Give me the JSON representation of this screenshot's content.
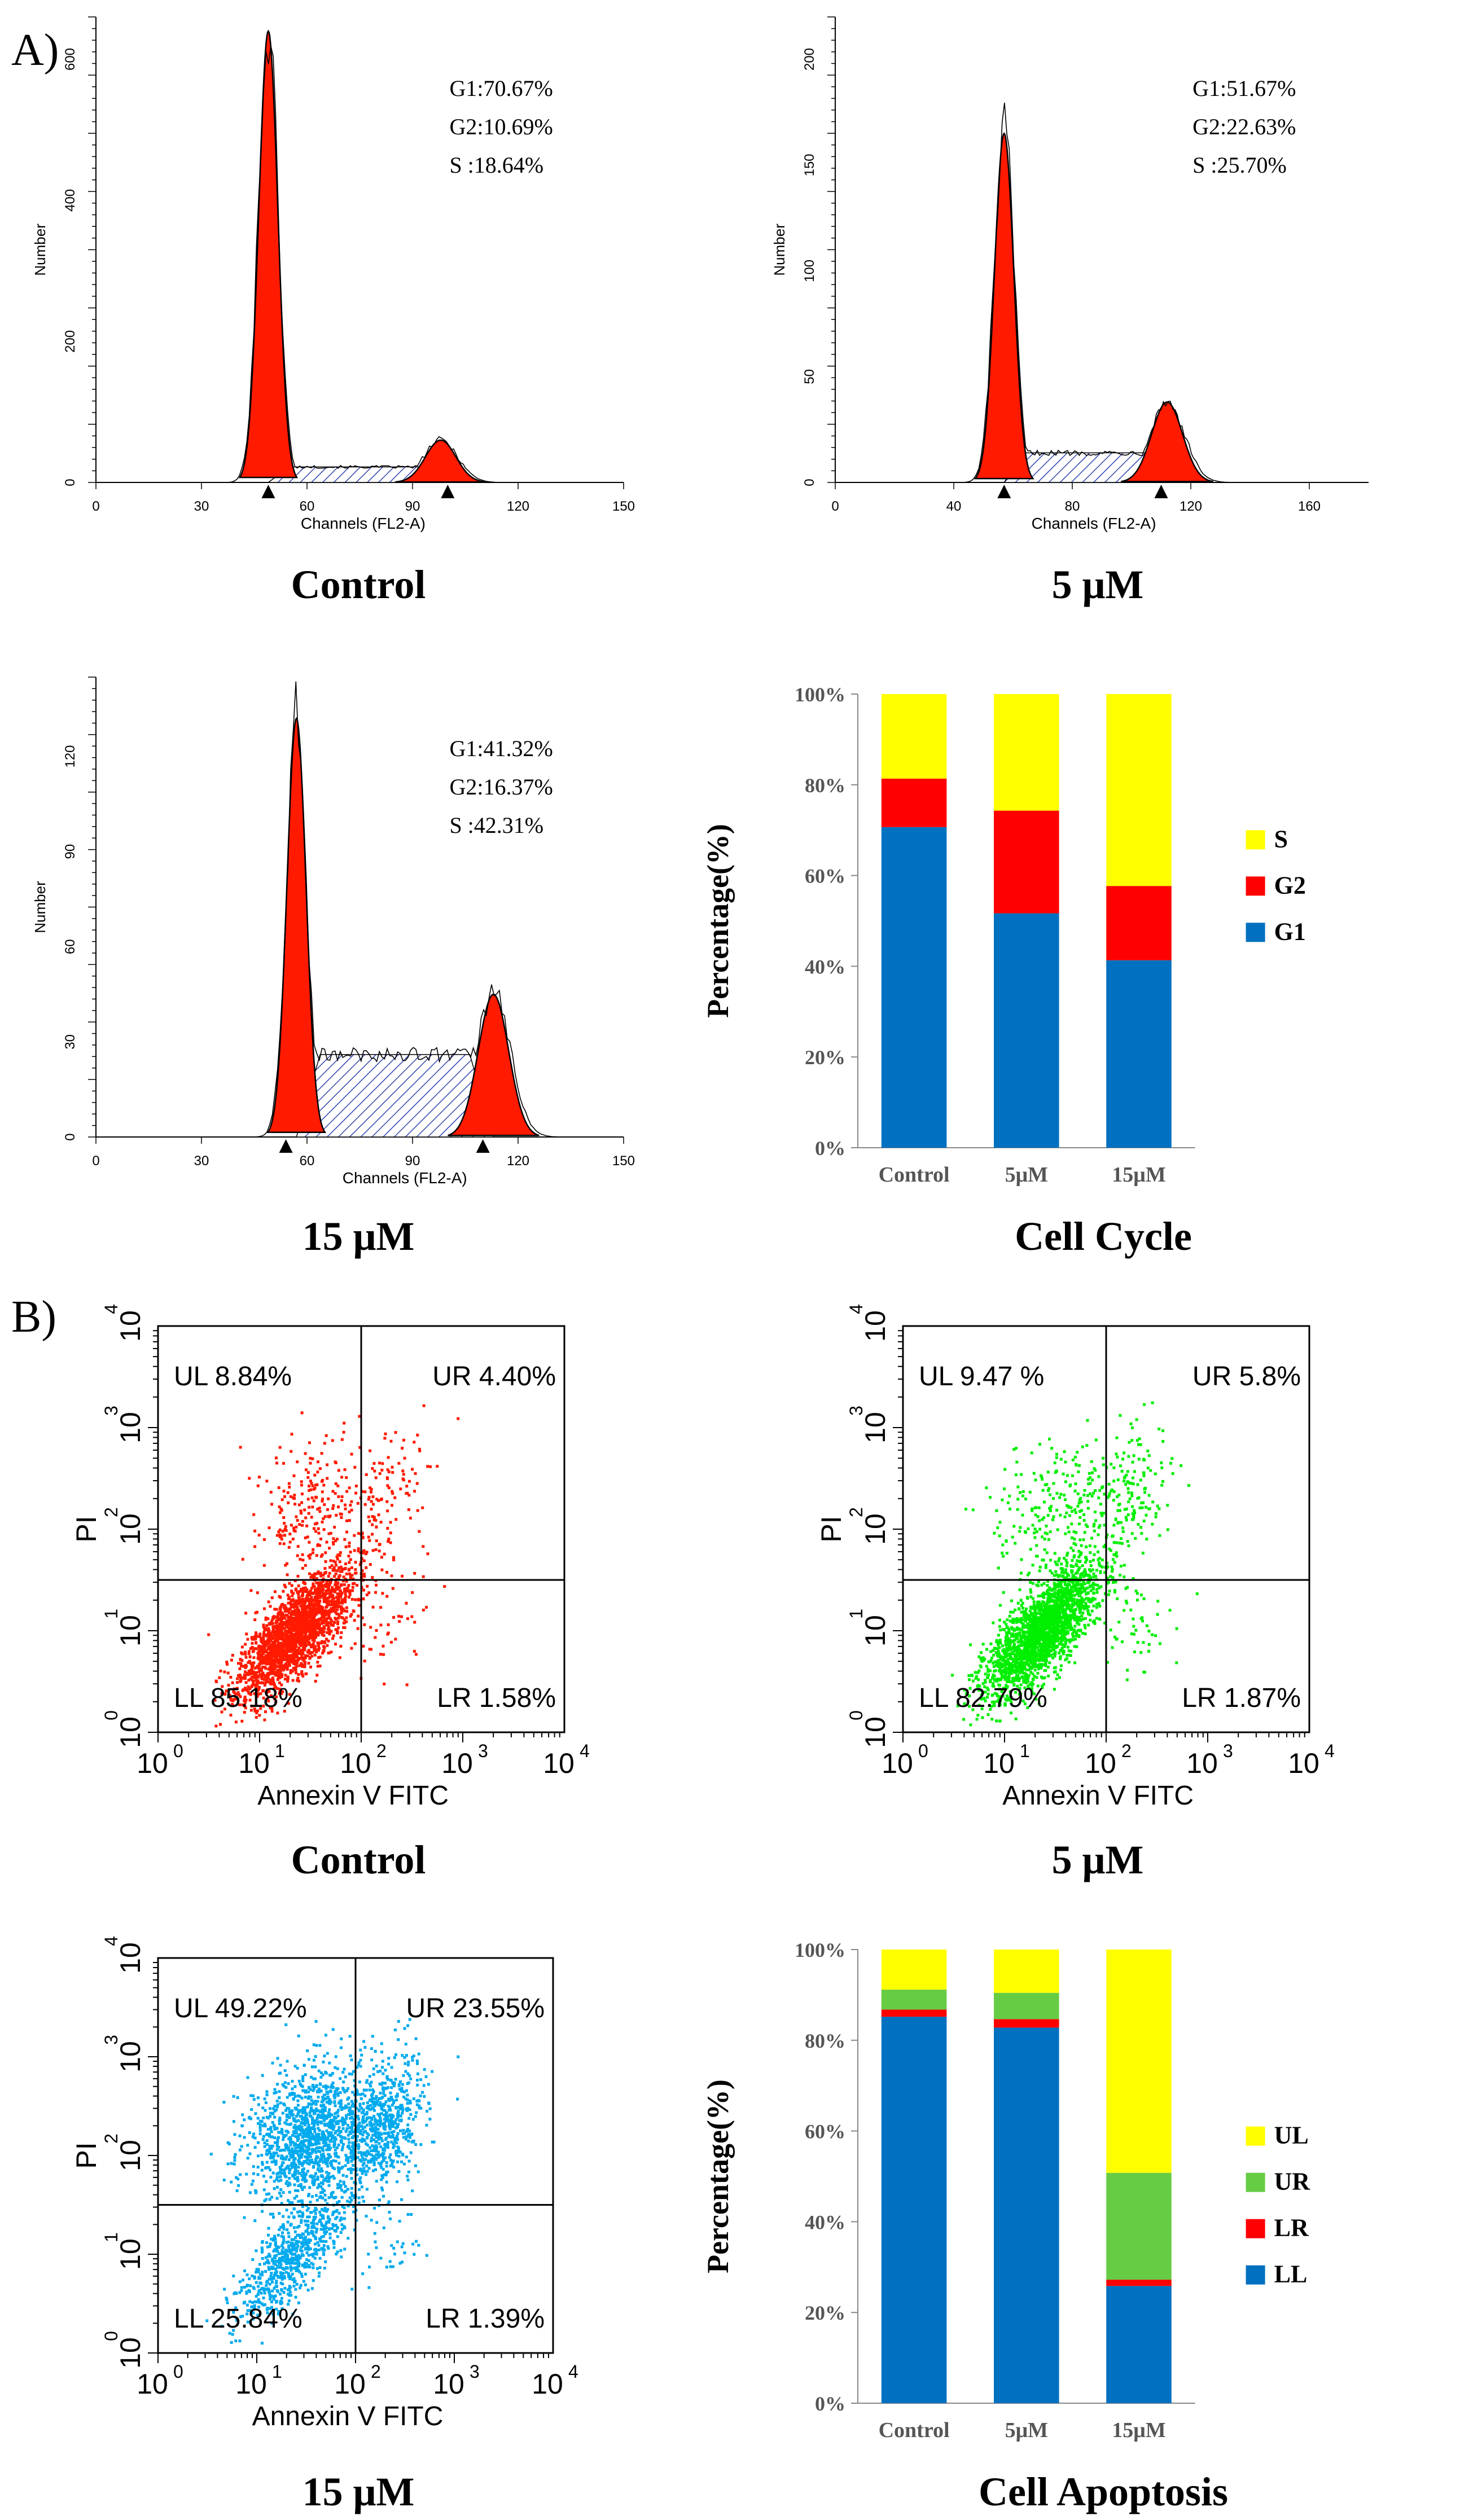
{
  "figure": {
    "section_a_label": "A)",
    "section_b_label": "B)"
  },
  "colors": {
    "g1": "#0070c0",
    "g2": "#ff0000",
    "s": "#ffff00",
    "ll": "#0070c0",
    "lr": "#ff0000",
    "ur": "#66cc44",
    "ul": "#ffff00",
    "hist_fill": "#ff1a00",
    "scatter_control": "#ff1a00",
    "scatter_5uM": "#00ee00",
    "scatter_15uM": "#00aaee"
  },
  "histograms": [
    {
      "caption": "Control",
      "ylabel": "Number",
      "xlabel": "Channels  (FL2-A)",
      "xticks": [
        "0",
        "30",
        "60",
        "90",
        "120",
        "150"
      ],
      "xmax": 150,
      "yticks": [
        "0",
        "200",
        "400",
        "600"
      ],
      "ymax": 660,
      "stats": [
        "G1:70.67%",
        "G2:10.69%",
        "S   :18.64%"
      ],
      "g1_center": 49,
      "g1_height": 640,
      "g2_center": 98,
      "g2_height": 60,
      "s_level": 22,
      "markers": [
        49,
        100
      ]
    },
    {
      "caption": "5 μM",
      "ylabel": "Number",
      "xlabel": "Channels  (FL2-A)",
      "xticks": [
        "0",
        "40",
        "80",
        "120",
        "160"
      ],
      "xmax": 180,
      "yticks": [
        "0",
        "50",
        "100",
        "150",
        "200"
      ],
      "ymax": 220,
      "stats": [
        "G1:51.67%",
        "G2:22.63%",
        "S   :25.70%"
      ],
      "g1_center": 57,
      "g1_height": 165,
      "g2_center": 112,
      "g2_height": 38,
      "s_level": 14,
      "markers": [
        57,
        110
      ]
    },
    {
      "caption": "15 μM",
      "ylabel": "Number",
      "xlabel": "Channels  (FL2-A)",
      "xticks": [
        "0",
        "30",
        "60",
        "90",
        "120",
        "150"
      ],
      "xmax": 150,
      "yticks": [
        "0",
        "30",
        "60",
        "90",
        "120"
      ],
      "ymax": 145,
      "stats": [
        "G1:41.32%",
        "G2:16.37%",
        "S   :42.31%"
      ],
      "g1_center": 57,
      "g1_height": 132,
      "g2_center": 113,
      "g2_height": 45,
      "s_level": 26,
      "markers": [
        54,
        110
      ]
    }
  ],
  "chart_data": [
    {
      "type": "bar",
      "stacked": true,
      "title": "Cell Cycle",
      "ylabel": "Percentage(%)",
      "categories": [
        "Control",
        "5μM",
        "15μM"
      ],
      "yticks": [
        "0%",
        "20%",
        "40%",
        "60%",
        "80%",
        "100%"
      ],
      "ylim": [
        0,
        100
      ],
      "series": [
        {
          "name": "G1",
          "values": [
            70.67,
            51.67,
            41.32
          ]
        },
        {
          "name": "G2",
          "values": [
            10.69,
            22.63,
            16.37
          ]
        },
        {
          "name": "S",
          "values": [
            18.64,
            25.7,
            42.31
          ]
        }
      ],
      "legend": [
        "S",
        "G2",
        "G1"
      ]
    },
    {
      "type": "bar",
      "stacked": true,
      "title": "Cell Apoptosis",
      "ylabel": "Percentage(%)",
      "categories": [
        "Control",
        "5μM",
        "15μM"
      ],
      "yticks": [
        "0%",
        "20%",
        "40%",
        "60%",
        "80%",
        "100%"
      ],
      "ylim": [
        0,
        100
      ],
      "series": [
        {
          "name": "LL",
          "values": [
            85.18,
            82.79,
            25.84
          ]
        },
        {
          "name": "LR",
          "values": [
            1.58,
            1.87,
            1.39
          ]
        },
        {
          "name": "UR",
          "values": [
            4.4,
            5.8,
            23.55
          ]
        },
        {
          "name": "UL",
          "values": [
            8.84,
            9.47,
            49.22
          ]
        }
      ],
      "legend": [
        "UL",
        "UR",
        "LR",
        "LL"
      ]
    }
  ],
  "scatters": [
    {
      "caption": "Control",
      "color_key": "scatter_control",
      "xlabel": "Annexin V  FITC",
      "ylabel": "PI",
      "ticks": [
        "10",
        "10",
        "10",
        "10",
        "10"
      ],
      "exps": [
        "0",
        "1",
        "2",
        "3",
        "4"
      ],
      "quadrants": {
        "ul": "UL 8.84%",
        "ur": "UR 4.40%",
        "ll": "LL 85.18%",
        "lr": "LR 1.58%"
      },
      "spread": 0.9,
      "seed": 11
    },
    {
      "caption": "5 μM",
      "color_key": "scatter_5uM",
      "xlabel": "Annexin V  FITC",
      "ylabel": "PI",
      "ticks": [
        "10",
        "10",
        "10",
        "10",
        "10"
      ],
      "exps": [
        "0",
        "1",
        "2",
        "3",
        "4"
      ],
      "quadrants": {
        "ul": "UL 9.47 %",
        "ur": "UR 5.8%",
        "ll": "LL 82.79%",
        "lr": "LR 1.87%"
      },
      "spread": 1.0,
      "seed": 23
    },
    {
      "caption": "15 μM",
      "color_key": "scatter_15uM",
      "xlabel": "Annexin V  FITC",
      "ylabel": "PI",
      "ticks": [
        "10",
        "10",
        "10",
        "10",
        "10"
      ],
      "exps": [
        "0",
        "1",
        "2",
        "3",
        "4"
      ],
      "quadrants": {
        "ul": "UL 49.22%",
        "ur": "UR 23.55%",
        "ll": "LL 25.84%",
        "lr": "LR 1.39%"
      },
      "spread": 1.0,
      "seed": 37
    }
  ]
}
